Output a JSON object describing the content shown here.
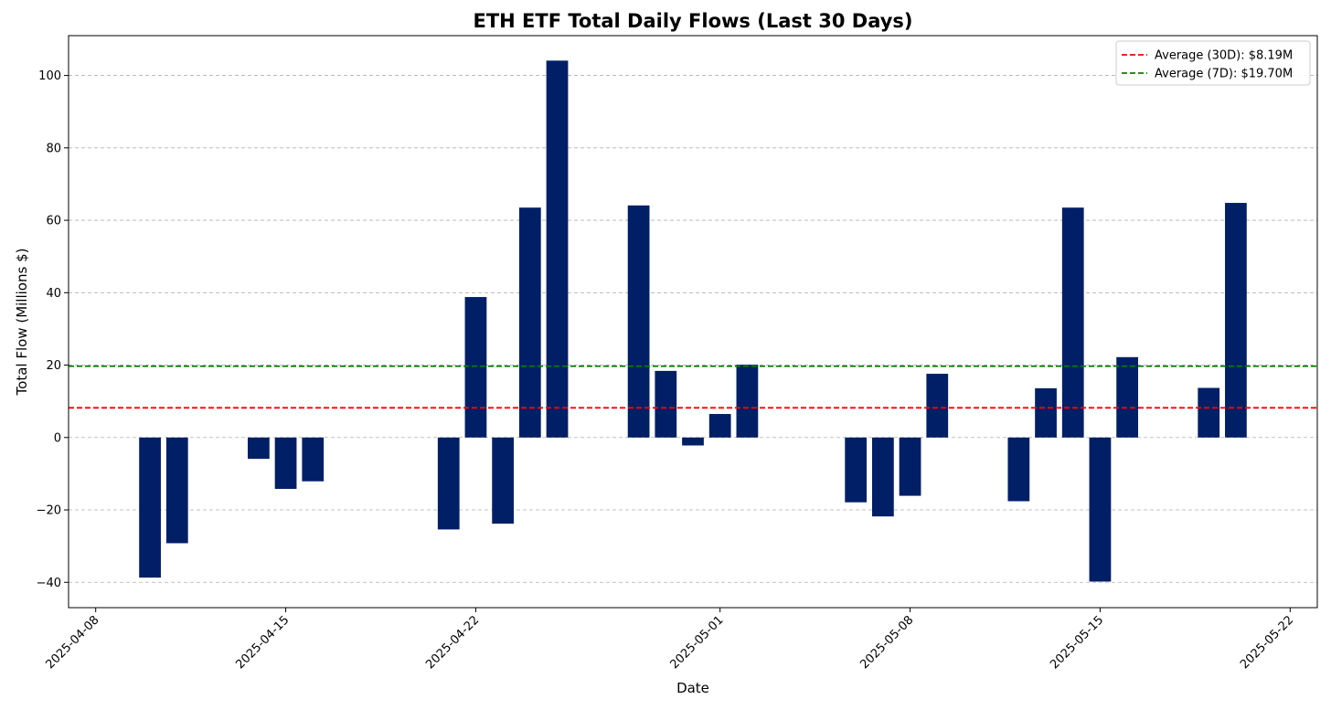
{
  "chart_data": {
    "type": "bar",
    "title": "ETH ETF Total Daily Flows (Last 30 Days)",
    "xlabel": "Date",
    "ylabel": "Total Flow (Millions $)",
    "bar_color": "#001f66",
    "grid": "y-dashed",
    "ylim": [
      -47,
      111
    ],
    "xlim": [
      "2025-04-07",
      "2025-05-23"
    ],
    "yticks": [
      -40,
      -20,
      0,
      20,
      40,
      60,
      80,
      100
    ],
    "xticks": [
      "2025-04-08",
      "2025-04-15",
      "2025-04-22",
      "2025-05-01",
      "2025-05-08",
      "2025-05-15",
      "2025-05-22"
    ],
    "x": [
      "2025-04-10",
      "2025-04-11",
      "2025-04-14",
      "2025-04-15",
      "2025-04-16",
      "2025-04-21",
      "2025-04-22",
      "2025-04-23",
      "2025-04-24",
      "2025-04-25",
      "2025-04-28",
      "2025-04-29",
      "2025-04-30",
      "2025-05-01",
      "2025-05-02",
      "2025-05-06",
      "2025-05-07",
      "2025-05-08",
      "2025-05-09",
      "2025-05-12",
      "2025-05-13",
      "2025-05-14",
      "2025-05-15",
      "2025-05-16",
      "2025-05-19",
      "2025-05-20"
    ],
    "values": [
      -38.7,
      -29.2,
      -5.9,
      -14.2,
      -12.1,
      -25.4,
      38.8,
      -23.8,
      63.5,
      104.1,
      64.1,
      18.4,
      -2.2,
      6.5,
      20.1,
      -17.9,
      -21.8,
      -16.1,
      17.6,
      -17.6,
      13.6,
      63.5,
      -39.8,
      22.2,
      13.7,
      64.8
    ],
    "reference_lines": [
      {
        "name": "Average (30D): $8.19M",
        "value": 8.19,
        "color": "#ff0000"
      },
      {
        "name": "Average (7D): $19.70M",
        "value": 19.7,
        "color": "#008000"
      }
    ],
    "legend_position": "top-right"
  }
}
